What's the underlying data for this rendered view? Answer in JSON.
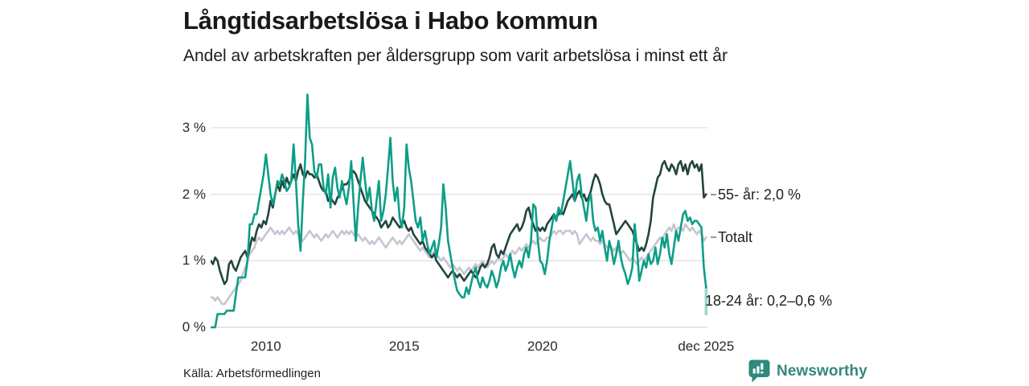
{
  "header": {
    "title": "Långtidsarbetslösa i Habo kommun",
    "subtitle": "Andel av arbetskraften per åldersgrupp som varit arbetslösa i minst ett år"
  },
  "footer": {
    "source": "Källa: Arbetsförmedlingen",
    "brand_name": "Newsworthy"
  },
  "colors": {
    "series_55plus": "#22463e",
    "series_totalt": "#c7c5d1",
    "series_18_24": "#0d9e87",
    "series_18_24_faded": "#9fd8cc",
    "grid": "#e2e1e5",
    "axis_text": "#2a2a2a",
    "label_dash": "#97959e",
    "brand_teal": "#35877c",
    "brand_icon_bg": "#2e8a7d"
  },
  "chart_data": {
    "type": "line",
    "title": "Långtidsarbetslösa i Habo kommun",
    "subtitle": "Andel av arbetskraften per åldersgrupp som varit arbetslösa i minst ett år",
    "unit": "%",
    "grid": true,
    "legend_position": "right-end-labels",
    "start_year": 2008,
    "points_per_year": 12,
    "x_axis": {
      "range_years": [
        2008.0,
        2025.9167
      ],
      "ticks": [
        {
          "label": "2010",
          "year": 2010
        },
        {
          "label": "2015",
          "year": 2015
        },
        {
          "label": "2020",
          "year": 2020
        },
        {
          "label": "dec 2025",
          "year": 2025.9167
        }
      ]
    },
    "y_axis": {
      "range": [
        0,
        3.59
      ],
      "ticks": [
        {
          "label": "0 %",
          "value": 0
        },
        {
          "label": "1 %",
          "value": 1
        },
        {
          "label": "2 %",
          "value": 2
        },
        {
          "label": "3 %",
          "value": 3
        }
      ]
    },
    "series": [
      {
        "id": "age55plus",
        "name": "55- år",
        "color": "#22463e",
        "z": 2,
        "end_label": "55- år: 2,0 %",
        "end_label_anchor": 2.0,
        "end_label_dash": true,
        "values": [
          1.0,
          0.95,
          1.05,
          1.0,
          0.85,
          0.75,
          0.65,
          0.7,
          0.95,
          1.0,
          0.9,
          0.85,
          0.95,
          1.05,
          1.1,
          1.15,
          1.05,
          1.2,
          1.35,
          1.3,
          1.45,
          1.55,
          1.5,
          1.6,
          1.55,
          1.7,
          1.9,
          1.8,
          2.0,
          2.15,
          2.05,
          2.2,
          2.1,
          2.25,
          2.15,
          2.2,
          2.3,
          2.2,
          2.35,
          2.45,
          2.3,
          2.25,
          2.35,
          2.3,
          2.3,
          2.25,
          2.3,
          2.2,
          2.1,
          2.05,
          2.05,
          1.9,
          1.95,
          1.9,
          1.85,
          1.95,
          2.0,
          2.1,
          2.15,
          2.15,
          2.2,
          2.3,
          2.35,
          2.3,
          2.2,
          2.1,
          2.0,
          1.9,
          1.85,
          1.8,
          1.75,
          1.7,
          1.65,
          1.6,
          1.5,
          1.55,
          1.6,
          1.5,
          1.55,
          1.65,
          1.6,
          1.55,
          1.5,
          1.55,
          1.6,
          1.5,
          1.45,
          1.5,
          1.4,
          1.35,
          1.3,
          1.25,
          1.3,
          1.2,
          1.15,
          1.1,
          1.05,
          1.1,
          1.0,
          0.95,
          0.9,
          0.85,
          0.8,
          0.75,
          0.8,
          0.85,
          0.8,
          0.75,
          0.8,
          0.75,
          0.7,
          0.75,
          0.8,
          0.85,
          0.8,
          0.75,
          0.8,
          0.9,
          0.95,
          0.9,
          0.95,
          1.05,
          1.2,
          1.25,
          1.1,
          1.05,
          1.15,
          1.1,
          1.2,
          1.3,
          1.4,
          1.45,
          1.5,
          1.55,
          1.45,
          1.5,
          1.6,
          1.75,
          1.8,
          1.65,
          1.55,
          1.45,
          1.5,
          1.45,
          1.5,
          1.45,
          1.55,
          1.6,
          1.65,
          1.7,
          1.65,
          1.7,
          1.75,
          1.7,
          1.8,
          1.9,
          1.95,
          2.0,
          1.9,
          2.0,
          2.05,
          1.95,
          2.0,
          1.9,
          1.95,
          2.05,
          2.2,
          2.3,
          2.25,
          2.15,
          2.0,
          1.9,
          1.85,
          1.85,
          1.7,
          1.55,
          1.4,
          1.45,
          1.5,
          1.55,
          1.6,
          1.55,
          1.5,
          1.45,
          1.35,
          1.25,
          1.15,
          1.2,
          1.15,
          1.25,
          1.4,
          1.6,
          1.95,
          2.1,
          2.25,
          2.3,
          2.45,
          2.5,
          2.4,
          2.35,
          2.45,
          2.4,
          2.3,
          2.45,
          2.5,
          2.35,
          2.45,
          2.3,
          2.45,
          2.5,
          2.4,
          2.45,
          2.35,
          2.45,
          1.95,
          2.0
        ]
      },
      {
        "id": "totalt",
        "name": "Totalt",
        "color": "#c7c5d1",
        "z": 1,
        "end_label": "Totalt",
        "end_label_anchor": 1.35,
        "end_label_dash": true,
        "values": [
          0.45,
          0.45,
          0.4,
          0.45,
          0.4,
          0.35,
          0.35,
          0.4,
          0.45,
          0.5,
          0.55,
          0.6,
          0.65,
          0.7,
          0.8,
          0.9,
          1.0,
          1.1,
          1.15,
          1.2,
          1.3,
          1.35,
          1.3,
          1.35,
          1.4,
          1.45,
          1.5,
          1.45,
          1.4,
          1.45,
          1.4,
          1.45,
          1.4,
          1.45,
          1.5,
          1.45,
          1.4,
          1.45,
          1.4,
          1.35,
          1.3,
          1.35,
          1.4,
          1.45,
          1.4,
          1.35,
          1.4,
          1.35,
          1.3,
          1.35,
          1.4,
          1.35,
          1.4,
          1.45,
          1.4,
          1.35,
          1.4,
          1.45,
          1.4,
          1.45,
          1.4,
          1.45,
          1.4,
          1.35,
          1.4,
          1.35,
          1.3,
          1.35,
          1.3,
          1.25,
          1.3,
          1.25,
          1.3,
          1.35,
          1.3,
          1.25,
          1.2,
          1.25,
          1.3,
          1.35,
          1.3,
          1.25,
          1.3,
          1.25,
          1.3,
          1.35,
          1.4,
          1.35,
          1.3,
          1.25,
          1.2,
          1.15,
          1.2,
          1.15,
          1.1,
          1.05,
          1.1,
          1.15,
          1.1,
          1.05,
          1.0,
          1.05,
          1.0,
          0.95,
          0.9,
          0.95,
          0.9,
          0.85,
          0.9,
          0.85,
          0.8,
          0.85,
          0.9,
          0.85,
          0.9,
          0.95,
          0.9,
          0.95,
          1.0,
          0.95,
          0.9,
          0.95,
          1.0,
          0.95,
          1.0,
          1.05,
          1.0,
          1.05,
          1.1,
          1.05,
          1.1,
          1.15,
          1.1,
          1.15,
          1.2,
          1.15,
          1.2,
          1.25,
          1.2,
          1.25,
          1.3,
          1.25,
          1.3,
          1.35,
          1.3,
          1.3,
          1.35,
          1.35,
          1.4,
          1.45,
          1.4,
          1.45,
          1.45,
          1.4,
          1.45,
          1.45,
          1.45,
          1.4,
          1.45,
          1.4,
          1.25,
          1.3,
          1.35,
          1.4,
          1.35,
          1.3,
          1.35,
          1.3,
          1.3,
          1.25,
          1.3,
          1.25,
          1.2,
          1.25,
          1.2,
          1.15,
          1.2,
          1.15,
          1.1,
          1.15,
          1.1,
          1.05,
          1.0,
          1.05,
          1.0,
          0.95,
          1.0,
          1.05,
          1.0,
          1.05,
          1.1,
          1.15,
          1.2,
          1.25,
          1.3,
          1.35,
          1.3,
          1.4,
          1.45,
          1.5,
          1.45,
          1.55,
          1.45,
          1.5,
          1.5,
          1.45,
          1.55,
          1.5,
          1.45,
          1.5,
          1.45,
          1.4,
          1.45,
          1.4,
          1.3,
          1.35
        ]
      },
      {
        "id": "age18to24",
        "name": "18-24 år",
        "color": "#0d9e87",
        "z": 3,
        "end_label": "18-24 år: 0,2–0,6 %",
        "end_label_anchor": 0.4,
        "end_label_dash": false,
        "final_range": [
          0.2,
          0.6
        ],
        "values": [
          0,
          0,
          0,
          0.2,
          0.2,
          0.2,
          0.2,
          0.25,
          0.25,
          0.25,
          0.25,
          0.5,
          0.75,
          0.75,
          0.75,
          0.75,
          1.0,
          1.55,
          1.55,
          1.7,
          1.7,
          1.9,
          2.1,
          2.3,
          2.6,
          2.3,
          2.0,
          1.85,
          2.0,
          2.2,
          2.15,
          2.3,
          2.2,
          2.05,
          2.1,
          2.2,
          2.75,
          2.2,
          1.55,
          1.15,
          1.9,
          2.5,
          3.5,
          2.85,
          2.75,
          2.35,
          2.25,
          2.45,
          2.45,
          2.1,
          2.0,
          2.3,
          1.8,
          2.25,
          2.4,
          2.1,
          1.95,
          2.2,
          2.0,
          1.85,
          2.1,
          2.5,
          1.9,
          1.3,
          1.8,
          2.2,
          2.55,
          2.2,
          1.9,
          2.1,
          1.75,
          1.6,
          1.9,
          2.2,
          1.6,
          1.75,
          2.0,
          2.4,
          2.85,
          2.2,
          1.9,
          2.1,
          1.65,
          1.5,
          1.8,
          2.75,
          2.4,
          2.2,
          1.9,
          1.6,
          1.5,
          1.65,
          1.3,
          1.45,
          1.25,
          1.1,
          1.2,
          1.3,
          1.05,
          1.25,
          1.5,
          2.15,
          1.8,
          1.3,
          1.1,
          0.9,
          0.7,
          0.55,
          0.5,
          0.45,
          0.45,
          0.6,
          0.5,
          0.65,
          0.8,
          0.9,
          0.7,
          0.6,
          0.75,
          0.65,
          0.6,
          0.7,
          0.85,
          0.75,
          0.6,
          0.7,
          0.9,
          1.0,
          0.85,
          0.95,
          1.1,
          0.9,
          0.75,
          0.9,
          1.0,
          0.9,
          1.1,
          1.2,
          1.05,
          1.3,
          1.85,
          1.8,
          1.3,
          1.0,
          0.95,
          0.8,
          1.0,
          1.3,
          1.5,
          1.7,
          1.6,
          1.8,
          1.7,
          1.9,
          2.1,
          2.3,
          2.5,
          2.2,
          1.9,
          2.2,
          2.3,
          2.0,
          1.8,
          1.6,
          1.9,
          2.0,
          1.6,
          1.45,
          1.5,
          1.3,
          1.45,
          1.2,
          1.0,
          1.3,
          1.15,
          0.95,
          1.1,
          1.3,
          1.05,
          0.9,
          0.8,
          0.65,
          0.75,
          0.9,
          1.55,
          1.2,
          0.7,
          0.85,
          1.0,
          0.9,
          1.1,
          0.95,
          1.0,
          1.2,
          0.95,
          1.1,
          1.35,
          1.2,
          1.4,
          1.1,
          0.95,
          1.2,
          1.45,
          1.3,
          1.5,
          1.7,
          1.75,
          1.6,
          1.65,
          1.55,
          1.6,
          1.6,
          1.55,
          1.5,
          0.9,
          0.6
        ]
      }
    ]
  }
}
